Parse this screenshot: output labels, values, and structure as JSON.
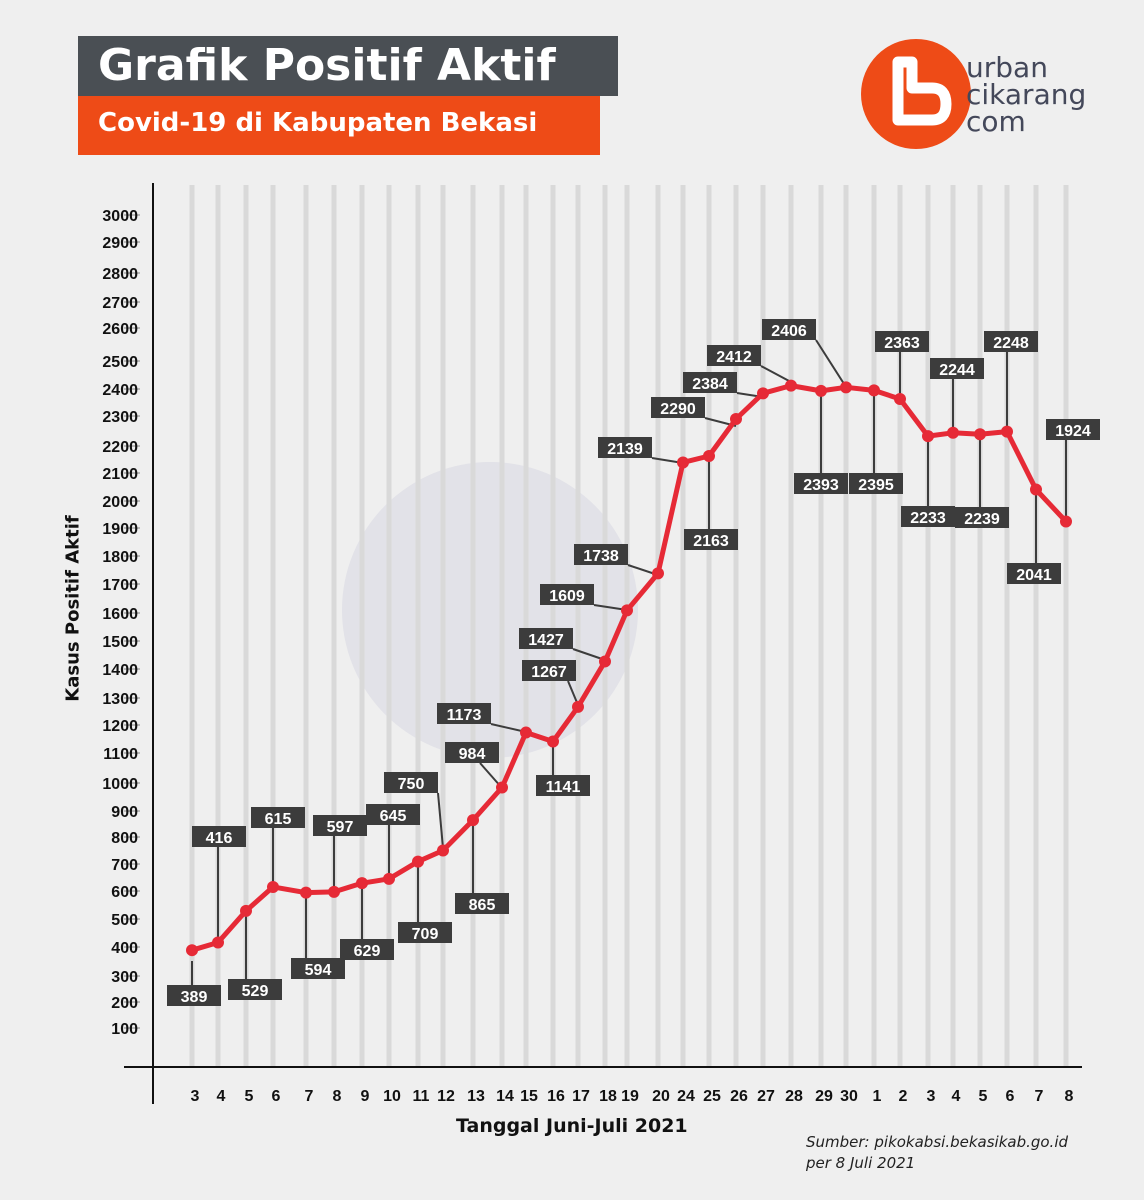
{
  "header": {
    "title": "Grafik Positif Aktif",
    "subtitle": "Covid-19 di Kabupaten Bekasi"
  },
  "logo": {
    "line1": "urban",
    "line2": "cikarang",
    "line3": "com"
  },
  "source": {
    "line1": "Sumber: pikokabsi.bekasikab.go.id",
    "line2": "per 8 Juli 2021"
  },
  "colors": {
    "line": "#e62a36",
    "label_bg": "#3c3c3c",
    "title_bg": "#4a4f54",
    "subtitle_bg": "#ee4b17",
    "logo": "#ee4b17"
  },
  "chart_data": {
    "type": "line",
    "xlabel": "Tanggal Juni-Juli 2021",
    "ylabel": "Kasus Positif Aktif",
    "ylim": [
      0,
      3000
    ],
    "yticks": [
      100,
      200,
      300,
      400,
      500,
      600,
      700,
      800,
      900,
      1000,
      1100,
      1200,
      1300,
      1400,
      1500,
      1600,
      1700,
      1800,
      1900,
      2000,
      2100,
      2200,
      2300,
      2400,
      2500,
      2600,
      2700,
      2800,
      2900,
      3000
    ],
    "grid": "vertical",
    "categories": [
      "3",
      "4",
      "5",
      "6",
      "7",
      "8",
      "9",
      "10",
      "11",
      "12",
      "13",
      "14",
      "15",
      "16",
      "17",
      "18",
      "19",
      "20",
      "24",
      "25",
      "26",
      "27",
      "28",
      "29",
      "30",
      "1",
      "2",
      "3",
      "4",
      "5",
      "6",
      "7",
      "8"
    ],
    "series": [
      {
        "values": [
          389,
          416,
          529,
          615,
          594,
          597,
          629,
          645,
          709,
          750,
          865,
          984,
          1173,
          1141,
          1267,
          1427,
          1609,
          1738,
          2139,
          2163,
          2290,
          2384,
          2412,
          2393,
          2406,
          2395,
          2363,
          2233,
          2244,
          2239,
          2248,
          2041,
          1924
        ]
      }
    ]
  }
}
